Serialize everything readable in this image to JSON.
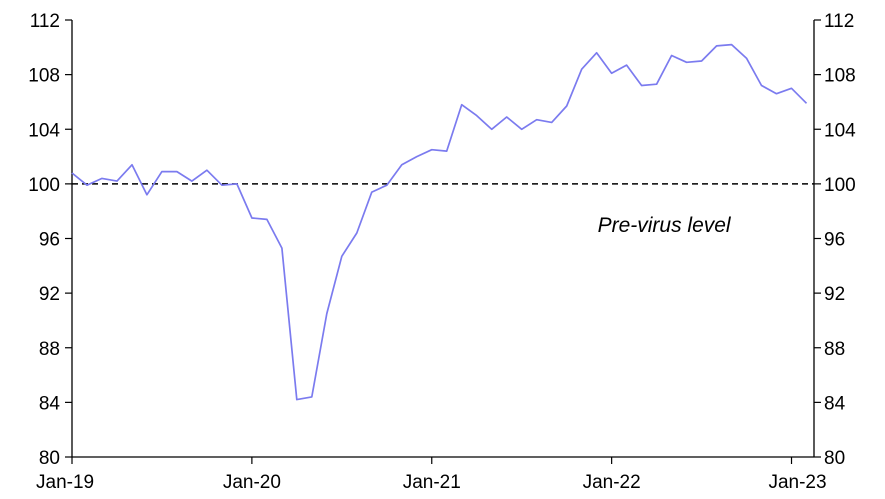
{
  "chart_data": {
    "type": "line",
    "title": "",
    "xlabel": "",
    "ylabel": "",
    "ylim": [
      80,
      112
    ],
    "y_ticks": [
      80,
      84,
      88,
      92,
      96,
      100,
      104,
      108,
      112
    ],
    "y_tick_labels": [
      "80",
      "84",
      "88",
      "92",
      "96",
      "100",
      "104",
      "108",
      "112"
    ],
    "x_tick_labels": [
      "Jan-19",
      "Jan-20",
      "Jan-21",
      "Jan-22",
      "Jan-23"
    ],
    "x_tick_positions": [
      0,
      12,
      24,
      36,
      48
    ],
    "x_range": [
      0,
      49.5
    ],
    "grid": false,
    "legend": "none",
    "dual_y_axis": true,
    "reference_line": {
      "value": 100,
      "style": "dashed",
      "color": "#000000"
    },
    "annotation": {
      "text": "Pre-virus level",
      "x": 39.5,
      "y": 97
    },
    "series": [
      {
        "color": "#7b7bef",
        "x": [
          "2019-01",
          "2019-02",
          "2019-03",
          "2019-04",
          "2019-05",
          "2019-06",
          "2019-07",
          "2019-08",
          "2019-09",
          "2019-10",
          "2019-11",
          "2019-12",
          "2020-01",
          "2020-02",
          "2020-03",
          "2020-04",
          "2020-05",
          "2020-06",
          "2020-07",
          "2020-08",
          "2020-09",
          "2020-10",
          "2020-11",
          "2020-12",
          "2021-01",
          "2021-02",
          "2021-03",
          "2021-04",
          "2021-05",
          "2021-06",
          "2021-07",
          "2021-08",
          "2021-09",
          "2021-10",
          "2021-11",
          "2021-12",
          "2022-01",
          "2022-02",
          "2022-03",
          "2022-04",
          "2022-05",
          "2022-06",
          "2022-07",
          "2022-08",
          "2022-09",
          "2022-10",
          "2022-11",
          "2022-12",
          "2023-01",
          "2023-02"
        ],
        "values": [
          100.8,
          99.9,
          100.4,
          100.2,
          101.4,
          99.2,
          100.9,
          100.9,
          100.2,
          101.0,
          99.9,
          100.0,
          97.5,
          97.4,
          95.3,
          84.2,
          84.4,
          90.5,
          94.7,
          96.4,
          99.4,
          99.9,
          101.4,
          102.0,
          102.5,
          102.4,
          105.8,
          105.0,
          104.0,
          104.9,
          104.0,
          104.7,
          104.5,
          105.7,
          108.4,
          109.6,
          108.1,
          108.7,
          107.2,
          107.3,
          109.4,
          108.9,
          109.0,
          110.1,
          110.2,
          109.2,
          107.2,
          106.6,
          107.0,
          105.9
        ]
      }
    ]
  }
}
